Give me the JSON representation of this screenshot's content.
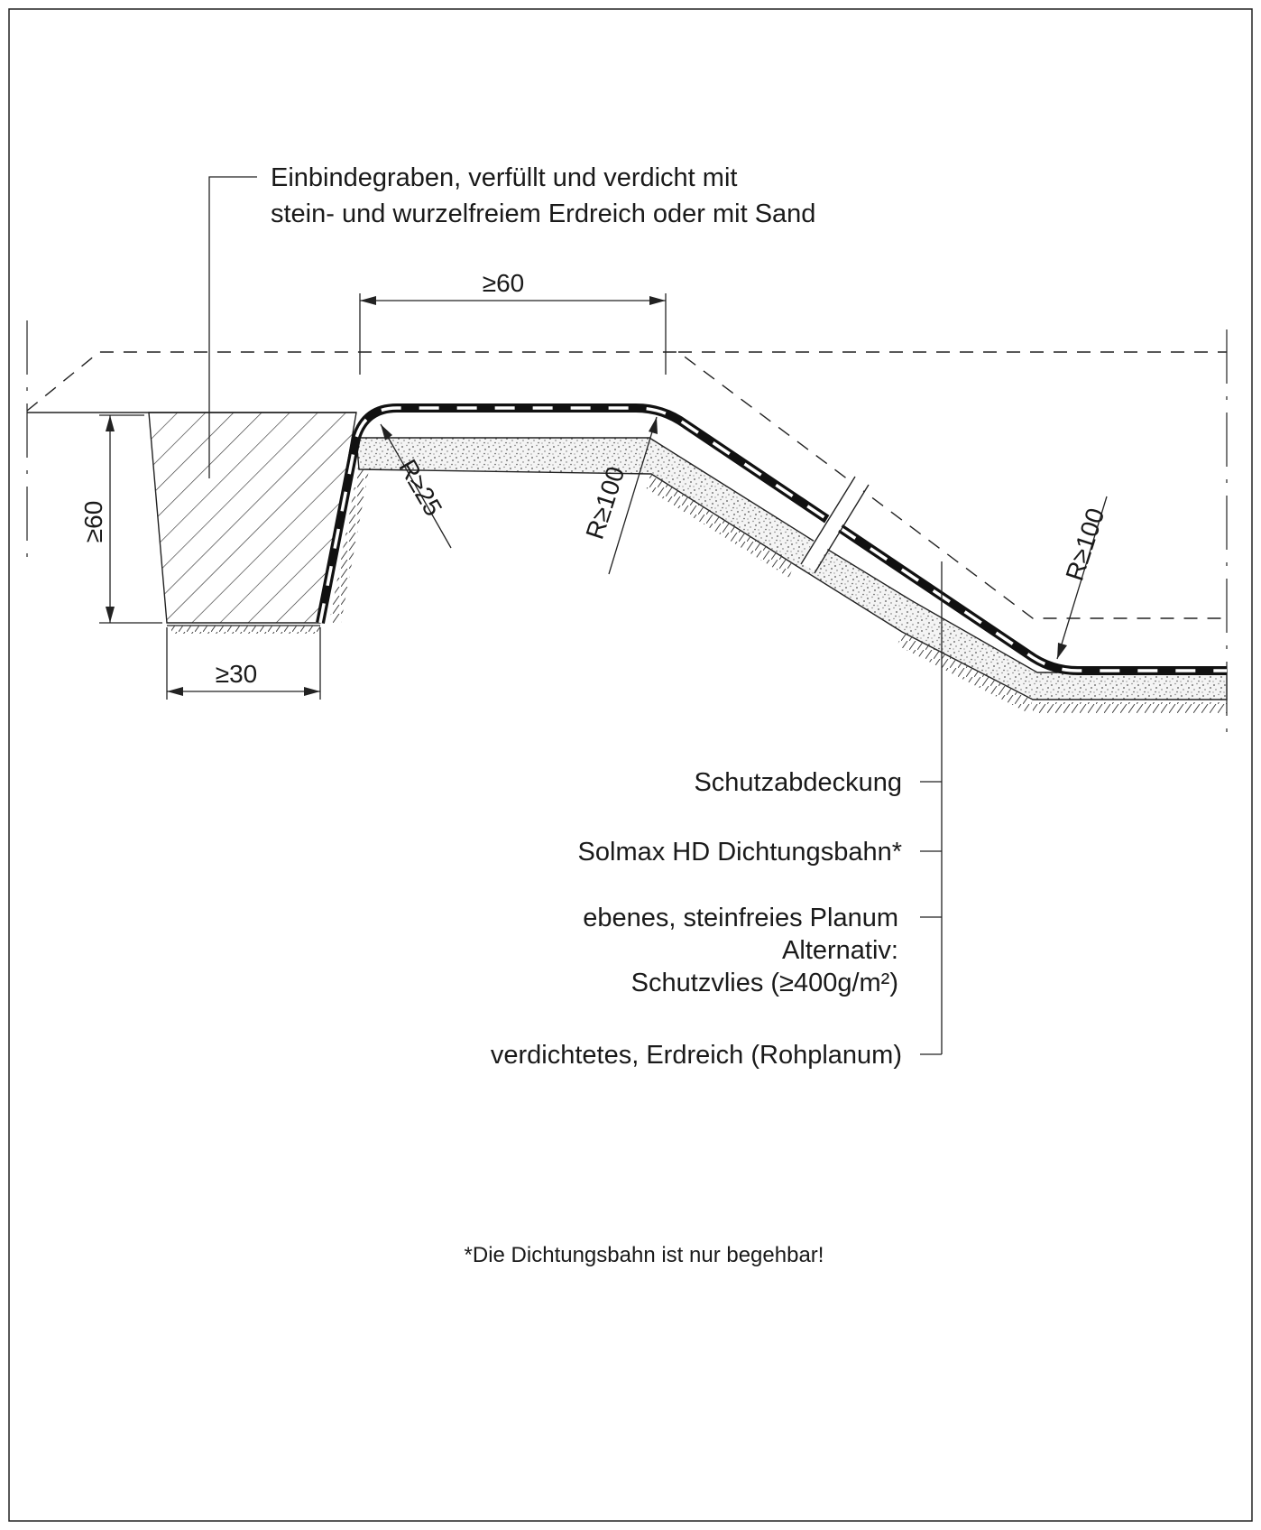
{
  "trench_label": {
    "line1": "Einbindegraben, verfüllt und verdicht mit",
    "line2": "stein- und wurzelfreiem Erdreich oder mit Sand"
  },
  "dimensions": {
    "top_width": "≥60",
    "trench_depth": "≥60",
    "trench_width": "≥30",
    "radius_edge": "R≥25",
    "radius_crest": "R≥100",
    "radius_toe": "R≥100"
  },
  "layers": {
    "cover": "Schutzabdeckung",
    "membrane": "Solmax HD Dichtungsbahn*",
    "subgrade_line1": "ebenes, steinfreies Planum",
    "subgrade_line2": "Alternativ:",
    "subgrade_line3": "Schutzvlies (≥400g/m²)",
    "soil": "verdichtetes, Erdreich (Rohplanum)"
  },
  "footnote": "*Die Dichtungsbahn ist nur begehbar!"
}
